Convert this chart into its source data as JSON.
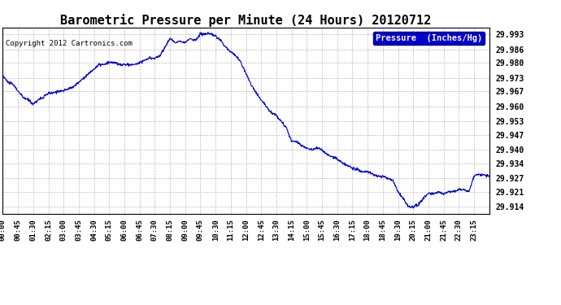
{
  "title": "Barometric Pressure per Minute (24 Hours) 20120712",
  "copyright": "Copyright 2012 Cartronics.com",
  "legend_label": "Pressure  (Inches/Hg)",
  "background_color": "#ffffff",
  "plot_bg_color": "#ffffff",
  "line_color": "#0000cc",
  "grid_color": "#bbbbbb",
  "yticks": [
    29.914,
    29.921,
    29.927,
    29.934,
    29.94,
    29.947,
    29.953,
    29.96,
    29.967,
    29.973,
    29.98,
    29.986,
    29.993
  ],
  "ylim": [
    29.911,
    29.996
  ],
  "xtick_labels": [
    "00:00",
    "00:45",
    "01:30",
    "02:15",
    "03:00",
    "03:45",
    "04:30",
    "05:15",
    "06:00",
    "06:45",
    "07:30",
    "08:15",
    "09:00",
    "09:45",
    "10:30",
    "11:15",
    "12:00",
    "12:45",
    "13:30",
    "14:15",
    "15:00",
    "15:45",
    "16:30",
    "17:15",
    "18:00",
    "18:45",
    "19:30",
    "20:15",
    "21:00",
    "21:45",
    "22:30",
    "23:15"
  ],
  "keypoints": [
    [
      0.0,
      29.974
    ],
    [
      0.25,
      29.971
    ],
    [
      0.5,
      29.97
    ],
    [
      0.75,
      29.967
    ],
    [
      1.0,
      29.964
    ],
    [
      1.25,
      29.963
    ],
    [
      1.5,
      29.961
    ],
    [
      1.75,
      29.963
    ],
    [
      2.0,
      29.964
    ],
    [
      2.25,
      29.966
    ],
    [
      2.5,
      29.966
    ],
    [
      2.75,
      29.967
    ],
    [
      3.0,
      29.967
    ],
    [
      3.25,
      29.968
    ],
    [
      3.5,
      29.969
    ],
    [
      3.75,
      29.971
    ],
    [
      4.0,
      29.973
    ],
    [
      4.25,
      29.975
    ],
    [
      4.5,
      29.977
    ],
    [
      4.75,
      29.979
    ],
    [
      5.0,
      29.979
    ],
    [
      5.25,
      29.98
    ],
    [
      5.5,
      29.98
    ],
    [
      5.75,
      29.979
    ],
    [
      6.0,
      29.979
    ],
    [
      6.25,
      29.979
    ],
    [
      6.5,
      29.979
    ],
    [
      6.75,
      29.98
    ],
    [
      7.0,
      29.981
    ],
    [
      7.25,
      29.982
    ],
    [
      7.5,
      29.982
    ],
    [
      7.75,
      29.983
    ],
    [
      8.0,
      29.987
    ],
    [
      8.25,
      29.991
    ],
    [
      8.5,
      29.989
    ],
    [
      8.75,
      29.99
    ],
    [
      9.0,
      29.989
    ],
    [
      9.25,
      29.991
    ],
    [
      9.5,
      29.99
    ],
    [
      9.75,
      29.993
    ],
    [
      10.0,
      29.993
    ],
    [
      10.25,
      29.993
    ],
    [
      10.5,
      29.992
    ],
    [
      10.75,
      29.99
    ],
    [
      11.0,
      29.987
    ],
    [
      11.25,
      29.985
    ],
    [
      11.5,
      29.983
    ],
    [
      11.75,
      29.98
    ],
    [
      12.0,
      29.975
    ],
    [
      12.25,
      29.97
    ],
    [
      12.5,
      29.966
    ],
    [
      12.75,
      29.963
    ],
    [
      13.0,
      29.96
    ],
    [
      13.25,
      29.957
    ],
    [
      13.5,
      29.956
    ],
    [
      13.75,
      29.953
    ],
    [
      14.0,
      29.95
    ],
    [
      14.25,
      29.944
    ],
    [
      14.5,
      29.944
    ],
    [
      14.75,
      29.942
    ],
    [
      15.0,
      29.941
    ],
    [
      15.25,
      29.94
    ],
    [
      15.5,
      29.941
    ],
    [
      15.75,
      29.94
    ],
    [
      16.0,
      29.938
    ],
    [
      16.25,
      29.937
    ],
    [
      16.5,
      29.936
    ],
    [
      16.75,
      29.934
    ],
    [
      17.0,
      29.933
    ],
    [
      17.25,
      29.932
    ],
    [
      17.5,
      29.931
    ],
    [
      17.75,
      29.93
    ],
    [
      18.0,
      29.93
    ],
    [
      18.25,
      29.929
    ],
    [
      18.5,
      29.928
    ],
    [
      18.75,
      29.928
    ],
    [
      19.0,
      29.927
    ],
    [
      19.25,
      29.926
    ],
    [
      19.5,
      29.921
    ],
    [
      19.75,
      29.918
    ],
    [
      20.0,
      29.914
    ],
    [
      20.25,
      29.914
    ],
    [
      20.5,
      29.915
    ],
    [
      20.75,
      29.918
    ],
    [
      21.0,
      29.92
    ],
    [
      21.25,
      29.92
    ],
    [
      21.5,
      29.921
    ],
    [
      21.75,
      29.92
    ],
    [
      22.0,
      29.921
    ],
    [
      22.25,
      29.921
    ],
    [
      22.5,
      29.922
    ],
    [
      22.75,
      29.922
    ],
    [
      23.0,
      29.921
    ],
    [
      23.25,
      29.928
    ],
    [
      23.5,
      29.929
    ],
    [
      24.0,
      29.928
    ]
  ]
}
